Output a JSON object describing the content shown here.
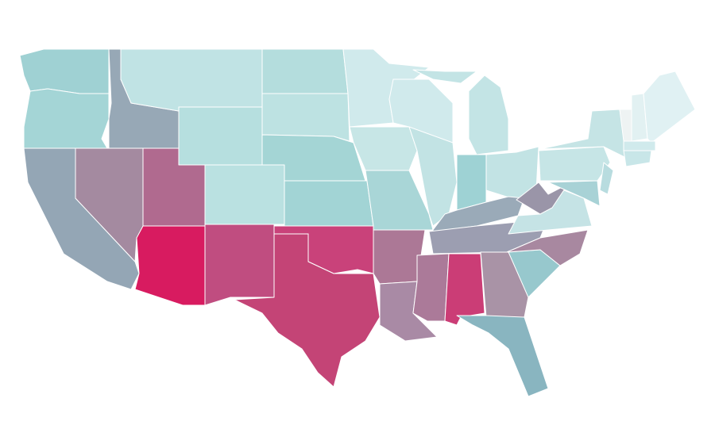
{
  "map": {
    "regions": [
      {
        "color": "#9fd1d3"
      },
      {
        "color": "#a4d5d6"
      },
      {
        "color": "#94a6b5"
      },
      {
        "color": "#97a8b6"
      },
      {
        "color": "#a48aa0"
      },
      {
        "color": "#c0e3e4"
      },
      {
        "color": "#b6dfdf"
      },
      {
        "color": "#b06a8f"
      },
      {
        "color": "#d81b60"
      },
      {
        "color": "#bae1e1"
      },
      {
        "color": "#c04d80"
      },
      {
        "color": "#b4dddd"
      },
      {
        "color": "#bde2e2"
      },
      {
        "color": "#a4d5d5"
      },
      {
        "color": "#a2d4d5"
      },
      {
        "color": "#c9427a"
      },
      {
        "color": "#c44476"
      },
      {
        "color": "#d0eaec"
      },
      {
        "color": "#c7e6e6"
      },
      {
        "color": "#a9d6d7"
      },
      {
        "color": "#ac7896"
      },
      {
        "color": "#a98aa5"
      },
      {
        "color": "#d0eaec"
      },
      {
        "color": "#c2e3e4"
      },
      {
        "color": "#c3e4e5"
      },
      {
        "color": "#c3e4e5"
      },
      {
        "color": "#9ed2d4"
      },
      {
        "color": "#c2e3e4"
      },
      {
        "color": "#9aaab8"
      },
      {
        "color": "#9c9eb1"
      },
      {
        "color": "#ab7a99"
      },
      {
        "color": "#cb3d76"
      },
      {
        "color": "#a993a6"
      },
      {
        "color": "#89b5c0"
      },
      {
        "color": "#97c8cd"
      },
      {
        "color": "#a888a0"
      },
      {
        "color": "#c5e3e5"
      },
      {
        "color": "#9a95a8"
      },
      {
        "color": "#c6e5e6"
      },
      {
        "color": "#c5e4e5"
      },
      {
        "color": "#a8d2d6"
      },
      {
        "color": "#b8dcdf"
      },
      {
        "color": "#eef3f3"
      },
      {
        "color": "#e2f1f2"
      },
      {
        "color": "#e0f1f3"
      },
      {
        "color": "#d0eaec"
      },
      {
        "color": "#c8e6e8"
      }
    ]
  }
}
